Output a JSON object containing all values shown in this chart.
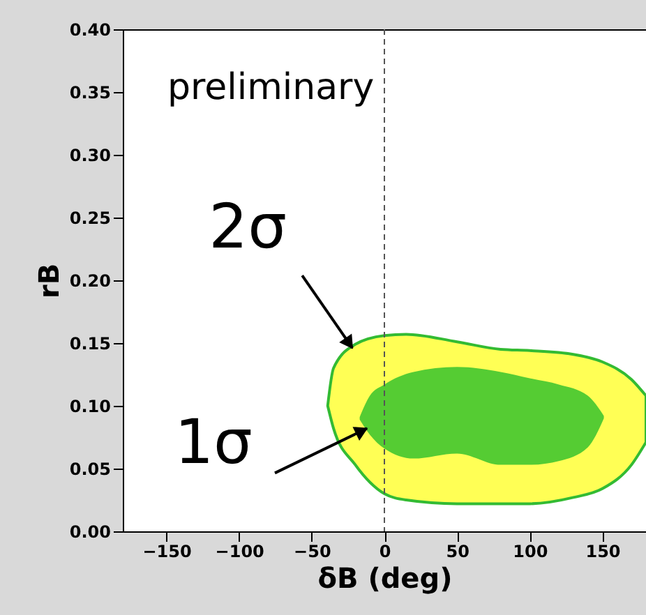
{
  "chart_data": {
    "type": "area",
    "xlabel": "δB (deg)",
    "ylabel": "rB",
    "xlim": [
      -180,
      180
    ],
    "ylim": [
      0,
      0.4
    ],
    "xticks": [
      -150,
      -100,
      -50,
      0,
      50,
      100,
      150
    ],
    "yticks": [
      {
        "value": 0,
        "label": "0.00"
      },
      {
        "value": 0.05,
        "label": "0.05"
      },
      {
        "value": 0.1,
        "label": "0.10"
      },
      {
        "value": 0.15,
        "label": "0.15"
      },
      {
        "value": 0.2,
        "label": "0.20"
      },
      {
        "value": 0.25,
        "label": "0.25"
      },
      {
        "value": 0.3,
        "label": "0.30"
      },
      {
        "value": 0.35,
        "label": "0.35"
      },
      {
        "value": 0.4,
        "label": "0.40"
      }
    ],
    "series": [
      {
        "color": "#ffff55",
        "values": [
          null,
          null,
          null,
          null,
          null,
          null,
          null,
          null,
          null,
          null,
          null,
          null
        ],
        "x": [
          -39,
          -35,
          -20,
          0,
          15,
          50,
          80,
          100,
          130,
          150,
          170,
          180
        ],
        "lower": [
          0.1,
          0.082,
          0.053,
          0.03,
          0.025,
          0.022,
          0.022,
          0.022,
          0.027,
          0.034,
          0.053,
          0.071
        ],
        "upper": [
          0.1,
          0.13,
          0.149,
          0.156,
          0.157,
          0.151,
          0.145,
          0.144,
          0.141,
          0.135,
          0.121,
          0.108
        ]
      },
      {
        "color": "#55cc33",
        "values": [
          null,
          null,
          null,
          null,
          null,
          null,
          null,
          null,
          null,
          null
        ],
        "x": [
          -17,
          -10,
          0,
          20,
          50,
          80,
          100,
          120,
          140,
          151
        ],
        "lower": [
          0.089,
          0.077,
          0.066,
          0.058,
          0.062,
          0.053,
          0.053,
          0.056,
          0.067,
          0.09
        ],
        "upper": [
          0.091,
          0.108,
          0.117,
          0.127,
          0.131,
          0.127,
          0.122,
          0.117,
          0.108,
          0.092
        ]
      }
    ],
    "ref_lines": [
      {
        "axis": "x",
        "value": 0,
        "line_style": "dashed",
        "color": "#555555"
      }
    ],
    "annotations": [
      "preliminary",
      {
        "text": "2σ",
        "x": -22,
        "y": 0.146
      },
      {
        "text": "1σ",
        "x": -12,
        "y": 0.082
      }
    ],
    "grid": false
  }
}
